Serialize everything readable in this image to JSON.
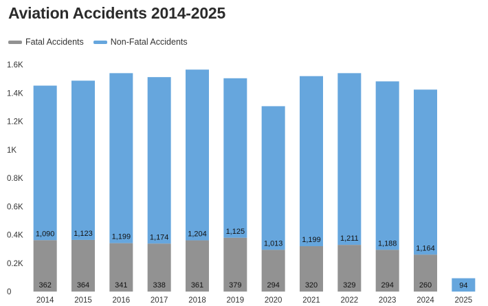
{
  "chart_data": {
    "type": "bar",
    "stacked": true,
    "title": "Aviation Accidents 2014-2025",
    "categories": [
      "2014",
      "2015",
      "2016",
      "2017",
      "2018",
      "2019",
      "2020",
      "2021",
      "2022",
      "2023",
      "2024",
      "2025"
    ],
    "series": [
      {
        "name": "Fatal Accidents",
        "color": "#929292",
        "values": [
          362,
          364,
          341,
          338,
          361,
          379,
          294,
          320,
          329,
          294,
          260,
          0
        ]
      },
      {
        "name": "Non-Fatal Accidents",
        "color": "#66a6dd",
        "values": [
          1090,
          1123,
          1199,
          1174,
          1204,
          1125,
          1013,
          1199,
          1211,
          1188,
          1164,
          94
        ]
      }
    ],
    "ylim": [
      0,
      1600
    ],
    "yticks": [
      0,
      200,
      400,
      600,
      800,
      1000,
      1200,
      1400,
      1600
    ],
    "yticklabels": [
      "0",
      "0.2K",
      "0.4K",
      "0.6K",
      "0.8K",
      "1K",
      "1.2K",
      "1.4K",
      "1.6K"
    ],
    "fatal_labels": [
      "362",
      "364",
      "341",
      "338",
      "361",
      "379",
      "294",
      "320",
      "329",
      "294",
      "260",
      ""
    ],
    "nonfatal_labels": [
      "1,090",
      "1,123",
      "1,199",
      "1,174",
      "1,204",
      "1,125",
      "1,013",
      "1,199",
      "1,211",
      "1,188",
      "1,164",
      "94"
    ],
    "xlabel": "",
    "ylabel": "",
    "legend_position": "top-left",
    "grid": false
  }
}
